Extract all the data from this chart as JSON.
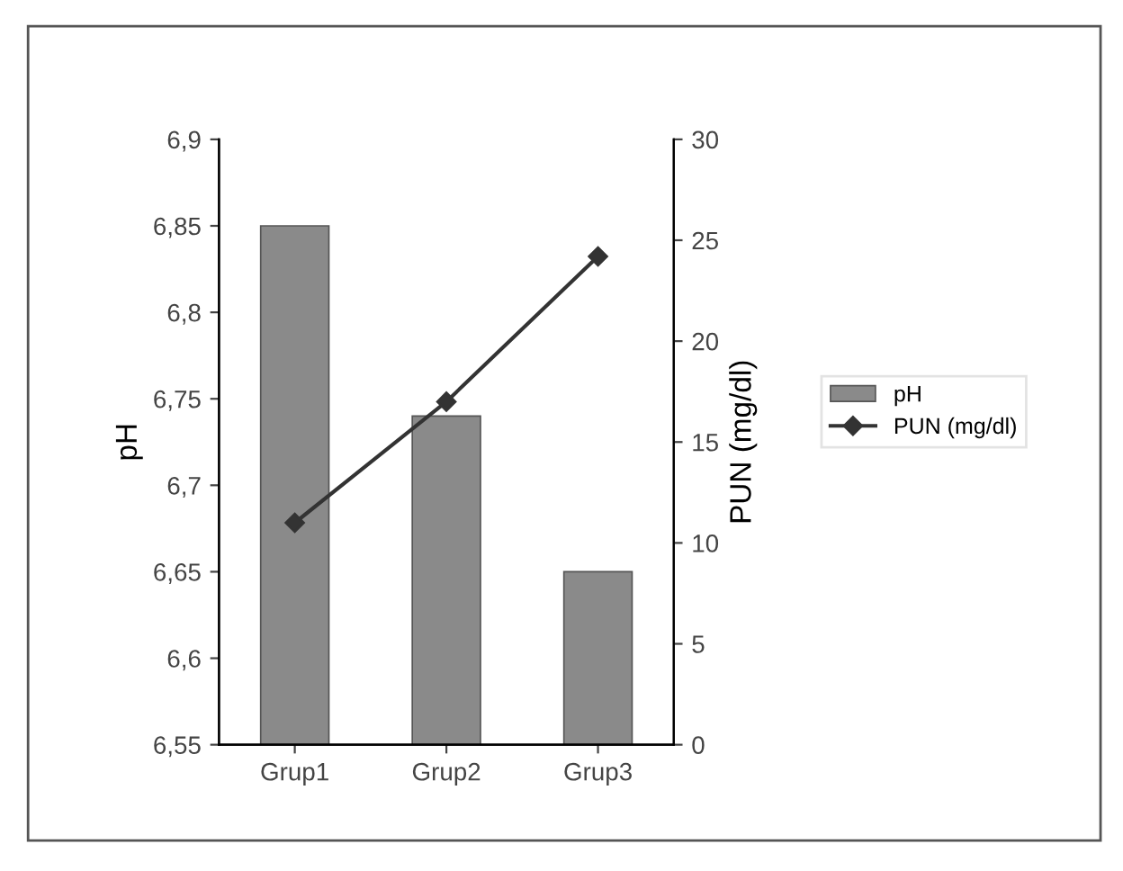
{
  "chart_data": {
    "type": "bar",
    "categories": [
      "Grup1",
      "Grup2",
      "Grup3"
    ],
    "series": [
      {
        "name": "pH",
        "color": "#8a8a8a",
        "values": [
          6.85,
          6.74,
          6.65
        ]
      },
      {
        "name": "PUN (mg/dl)",
        "type": "line",
        "axis": "y2",
        "color": "#333333",
        "marker": "diamond",
        "values": [
          11,
          17,
          24.2
        ]
      }
    ],
    "ylabel": "pH",
    "y2label": "PUN (mg/dl)",
    "ylim": [
      6.55,
      6.9
    ],
    "yticks": [
      {
        "value": 6.55,
        "label": "6,55"
      },
      {
        "value": 6.6,
        "label": "6,6"
      },
      {
        "value": 6.65,
        "label": "6,65"
      },
      {
        "value": 6.7,
        "label": "6,7"
      },
      {
        "value": 6.75,
        "label": "6,75"
      },
      {
        "value": 6.8,
        "label": "6,8"
      },
      {
        "value": 6.85,
        "label": "6,85"
      },
      {
        "value": 6.9,
        "label": "6,9"
      }
    ],
    "y2lim": [
      0,
      30
    ],
    "y2ticks": [
      0,
      5,
      10,
      15,
      20,
      25,
      30
    ],
    "grid": false,
    "legend": "right"
  }
}
